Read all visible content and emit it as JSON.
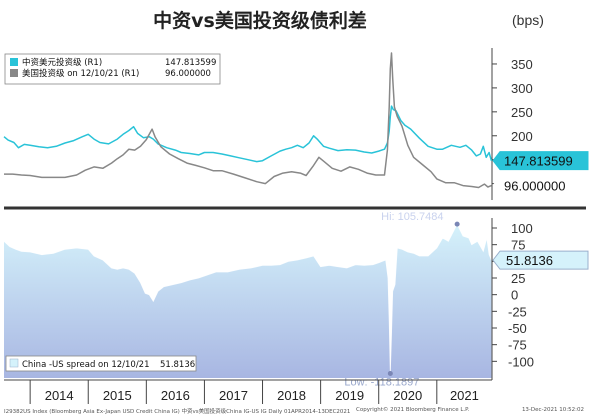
{
  "title": "中资vs美国投资级债利差",
  "unit": "(bps)",
  "colors": {
    "cn_line": "#29c3d8",
    "us_line": "#888888",
    "spread_fill": "#a8b6e2",
    "spread_light": "#d5f2fb",
    "divider": "#333333"
  },
  "chart_data": [
    {
      "type": "line",
      "legend": [
        {
          "label": "中资美元投资级 (R1)",
          "value": "147.813599"
        },
        {
          "label": "美国投资级 on 12/10/21 (R1)",
          "value": "96.000000"
        }
      ],
      "last_labels": [
        "147.813599",
        "96.000000"
      ],
      "yticks": [
        100,
        150,
        200,
        250,
        300,
        350
      ],
      "ylim": [
        70,
        375
      ],
      "series": [
        {
          "name": "中资美元投资级",
          "points": [
            [
              2013.55,
              198
            ],
            [
              2013.62,
              191
            ],
            [
              2013.72,
              186
            ],
            [
              2013.8,
              175
            ],
            [
              2013.9,
              182
            ],
            [
              2014.0,
              180
            ],
            [
              2014.15,
              177
            ],
            [
              2014.3,
              175
            ],
            [
              2014.45,
              178
            ],
            [
              2014.6,
              185
            ],
            [
              2014.75,
              190
            ],
            [
              2014.9,
              198
            ],
            [
              2015.0,
              203
            ],
            [
              2015.1,
              193
            ],
            [
              2015.2,
              186
            ],
            [
              2015.35,
              183
            ],
            [
              2015.5,
              193
            ],
            [
              2015.6,
              203
            ],
            [
              2015.7,
              211
            ],
            [
              2015.78,
              219
            ],
            [
              2015.85,
              205
            ],
            [
              2015.95,
              196
            ],
            [
              2016.05,
              198
            ],
            [
              2016.12,
              193
            ],
            [
              2016.2,
              183
            ],
            [
              2016.35,
              175
            ],
            [
              2016.5,
              170
            ],
            [
              2016.6,
              165
            ],
            [
              2016.75,
              163
            ],
            [
              2016.9,
              160
            ],
            [
              2017.0,
              165
            ],
            [
              2017.15,
              165
            ],
            [
              2017.3,
              162
            ],
            [
              2017.45,
              158
            ],
            [
              2017.6,
              154
            ],
            [
              2017.75,
              150
            ],
            [
              2017.9,
              146
            ],
            [
              2018.0,
              148
            ],
            [
              2018.15,
              158
            ],
            [
              2018.3,
              168
            ],
            [
              2018.4,
              172
            ],
            [
              2018.5,
              175
            ],
            [
              2018.6,
              180
            ],
            [
              2018.7,
              175
            ],
            [
              2018.8,
              185
            ],
            [
              2018.88,
              200
            ],
            [
              2018.95,
              192
            ],
            [
              2019.05,
              178
            ],
            [
              2019.15,
              174
            ],
            [
              2019.3,
              169
            ],
            [
              2019.45,
              171
            ],
            [
              2019.6,
              170
            ],
            [
              2019.75,
              166
            ],
            [
              2019.88,
              164
            ],
            [
              2020.0,
              168
            ],
            [
              2020.1,
              172
            ],
            [
              2020.15,
              185
            ],
            [
              2020.18,
              210
            ],
            [
              2020.2,
              240
            ],
            [
              2020.22,
              262
            ],
            [
              2020.25,
              255
            ],
            [
              2020.3,
              252
            ],
            [
              2020.38,
              232
            ],
            [
              2020.45,
              222
            ],
            [
              2020.55,
              214
            ],
            [
              2020.7,
              195
            ],
            [
              2020.85,
              178
            ],
            [
              2021.0,
              172
            ],
            [
              2021.1,
              172
            ],
            [
              2021.25,
              180
            ],
            [
              2021.4,
              176
            ],
            [
              2021.5,
              180
            ],
            [
              2021.6,
              170
            ],
            [
              2021.68,
              158
            ],
            [
              2021.75,
              162
            ],
            [
              2021.8,
              178
            ],
            [
              2021.85,
              155
            ],
            [
              2021.9,
              165
            ],
            [
              2021.94,
              148
            ]
          ]
        },
        {
          "name": "美国投资级",
          "points": [
            [
              2013.55,
              120
            ],
            [
              2013.7,
              120
            ],
            [
              2013.85,
              118
            ],
            [
              2014.0,
              117
            ],
            [
              2014.2,
              113
            ],
            [
              2014.4,
              113
            ],
            [
              2014.6,
              113
            ],
            [
              2014.8,
              118
            ],
            [
              2014.95,
              128
            ],
            [
              2015.1,
              135
            ],
            [
              2015.25,
              132
            ],
            [
              2015.4,
              143
            ],
            [
              2015.5,
              152
            ],
            [
              2015.6,
              160
            ],
            [
              2015.7,
              172
            ],
            [
              2015.8,
              170
            ],
            [
              2015.9,
              178
            ],
            [
              2016.0,
              192
            ],
            [
              2016.1,
              214
            ],
            [
              2016.15,
              198
            ],
            [
              2016.25,
              177
            ],
            [
              2016.4,
              162
            ],
            [
              2016.55,
              152
            ],
            [
              2016.7,
              143
            ],
            [
              2016.85,
              138
            ],
            [
              2017.0,
              133
            ],
            [
              2017.15,
              127
            ],
            [
              2017.3,
              127
            ],
            [
              2017.5,
              120
            ],
            [
              2017.7,
              112
            ],
            [
              2017.9,
              104
            ],
            [
              2018.05,
              100
            ],
            [
              2018.2,
              115
            ],
            [
              2018.35,
              122
            ],
            [
              2018.5,
              125
            ],
            [
              2018.65,
              122
            ],
            [
              2018.75,
              117
            ],
            [
              2018.88,
              138
            ],
            [
              2018.97,
              155
            ],
            [
              2019.05,
              147
            ],
            [
              2019.2,
              132
            ],
            [
              2019.35,
              126
            ],
            [
              2019.5,
              135
            ],
            [
              2019.65,
              130
            ],
            [
              2019.8,
              122
            ],
            [
              2019.95,
              118
            ],
            [
              2020.1,
              118
            ],
            [
              2020.15,
              170
            ],
            [
              2020.18,
              260
            ],
            [
              2020.2,
              340
            ],
            [
              2020.22,
              373
            ],
            [
              2020.24,
              320
            ],
            [
              2020.27,
              260
            ],
            [
              2020.32,
              240
            ],
            [
              2020.4,
              220
            ],
            [
              2020.5,
              180
            ],
            [
              2020.6,
              155
            ],
            [
              2020.75,
              140
            ],
            [
              2020.9,
              125
            ],
            [
              2021.0,
              110
            ],
            [
              2021.15,
              102
            ],
            [
              2021.3,
              102
            ],
            [
              2021.45,
              96
            ],
            [
              2021.6,
              94
            ],
            [
              2021.72,
              92
            ],
            [
              2021.82,
              99
            ],
            [
              2021.88,
              93
            ],
            [
              2021.94,
              96
            ]
          ]
        }
      ]
    },
    {
      "type": "area",
      "legend": [
        {
          "label": "China -US spread on 12/10/21",
          "value": "51.8136"
        }
      ],
      "last_label": "51.8136",
      "yticks": [
        -100,
        -75,
        -50,
        -25,
        0,
        25,
        50,
        75,
        100
      ],
      "ylim": [
        -125,
        112
      ],
      "annotations": [
        {
          "text": "Hi: 105.7484",
          "x": 2021.35,
          "y": 105.7484
        },
        {
          "text": "Low: -118.1897",
          "x": 2020.2,
          "y": -118.1897
        }
      ],
      "series": [
        {
          "name": "China -US spread",
          "points": [
            [
              2013.55,
              80
            ],
            [
              2013.65,
              72
            ],
            [
              2013.75,
              68
            ],
            [
              2013.85,
              65
            ],
            [
              2014.0,
              64
            ],
            [
              2014.2,
              60
            ],
            [
              2014.4,
              62
            ],
            [
              2014.6,
              68
            ],
            [
              2014.8,
              70
            ],
            [
              2015.0,
              68
            ],
            [
              2015.1,
              58
            ],
            [
              2015.25,
              52
            ],
            [
              2015.4,
              40
            ],
            [
              2015.5,
              38
            ],
            [
              2015.6,
              40
            ],
            [
              2015.7,
              38
            ],
            [
              2015.8,
              32
            ],
            [
              2015.9,
              18
            ],
            [
              2015.98,
              2
            ],
            [
              2016.05,
              0
            ],
            [
              2016.12,
              -10
            ],
            [
              2016.2,
              5
            ],
            [
              2016.3,
              12
            ],
            [
              2016.45,
              15
            ],
            [
              2016.6,
              18
            ],
            [
              2016.75,
              22
            ],
            [
              2016.9,
              25
            ],
            [
              2017.0,
              28
            ],
            [
              2017.2,
              34
            ],
            [
              2017.4,
              34
            ],
            [
              2017.6,
              38
            ],
            [
              2017.8,
              40
            ],
            [
              2018.0,
              44
            ],
            [
              2018.15,
              44
            ],
            [
              2018.3,
              45
            ],
            [
              2018.45,
              50
            ],
            [
              2018.6,
              52
            ],
            [
              2018.75,
              55
            ],
            [
              2018.88,
              58
            ],
            [
              2019.0,
              42
            ],
            [
              2019.15,
              44
            ],
            [
              2019.3,
              42
            ],
            [
              2019.45,
              40
            ],
            [
              2019.6,
              45
            ],
            [
              2019.75,
              44
            ],
            [
              2019.9,
              45
            ],
            [
              2020.0,
              48
            ],
            [
              2020.12,
              52
            ],
            [
              2020.16,
              25
            ],
            [
              2020.18,
              -40
            ],
            [
              2020.2,
              -118.1897
            ],
            [
              2020.22,
              -60
            ],
            [
              2020.24,
              5
            ],
            [
              2020.28,
              15
            ],
            [
              2020.32,
              70
            ],
            [
              2020.4,
              68
            ],
            [
              2020.5,
              64
            ],
            [
              2020.6,
              62
            ],
            [
              2020.7,
              58
            ],
            [
              2020.85,
              58
            ],
            [
              2021.0,
              70
            ],
            [
              2021.1,
              85
            ],
            [
              2021.2,
              80
            ],
            [
              2021.35,
              105.7484
            ],
            [
              2021.45,
              88
            ],
            [
              2021.55,
              85
            ],
            [
              2021.6,
              75
            ],
            [
              2021.7,
              80
            ],
            [
              2021.8,
              65
            ],
            [
              2021.86,
              85
            ],
            [
              2021.9,
              60
            ],
            [
              2021.94,
              51.8136
            ]
          ]
        }
      ]
    }
  ],
  "x_labels": [
    "2014",
    "2015",
    "2016",
    "2017",
    "2018",
    "2019",
    "2020",
    "2021"
  ],
  "x_range": [
    2013.55,
    2021.95
  ],
  "footer": {
    "left": "I29382US Index (Bloomberg Asia Ex-Japan USD Credit China IG) 中资vs美国投资级China IG-US IG  Daily 01APR2014-13DEC2021",
    "mid": "Copyright© 2021 Bloomberg Finance L.P.",
    "right": "13-Dec-2021 10:52:02"
  }
}
